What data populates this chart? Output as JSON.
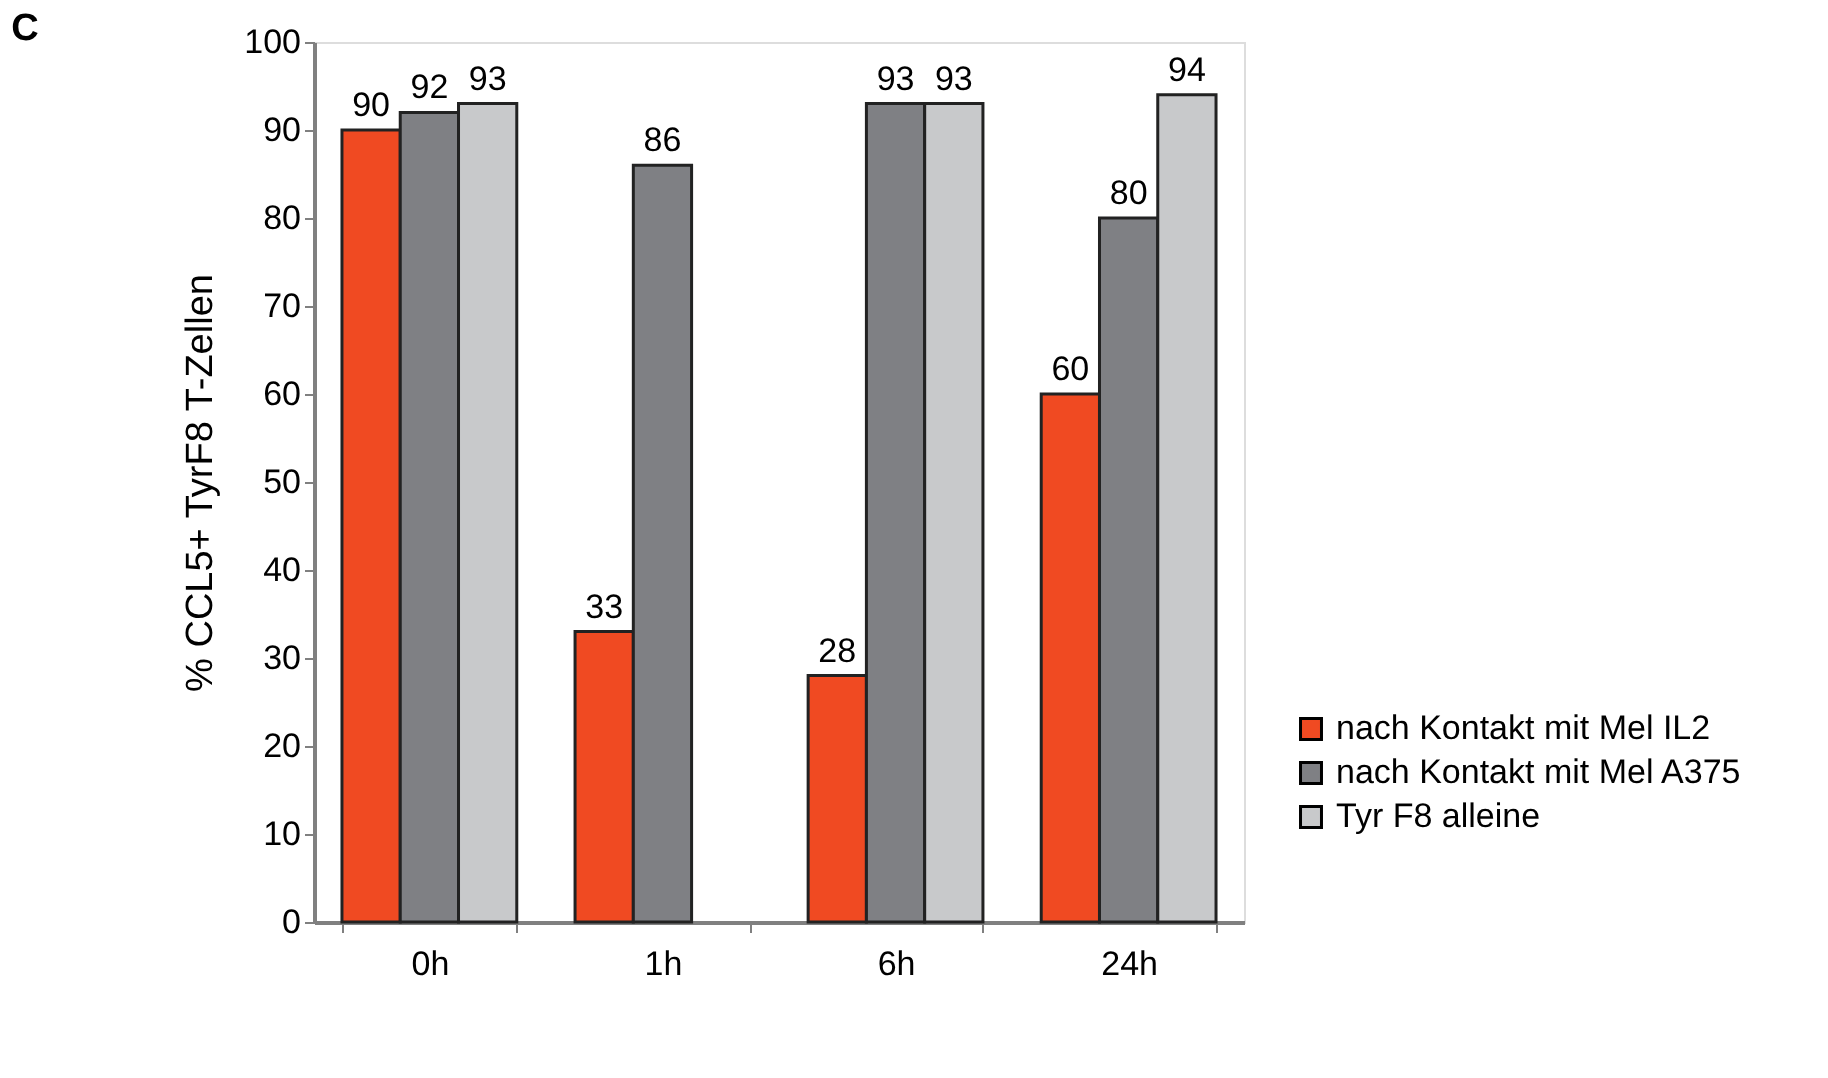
{
  "chart_data": {
    "type": "bar",
    "title": "C",
    "ylabel": "% CCL5+ TyrF8 T-Zellen",
    "categories": [
      "0h",
      "1h",
      "6h",
      "24h"
    ],
    "series": [
      {
        "name": "nach Kontakt mit Mel IL2",
        "color": "#f04a22",
        "values": [
          90,
          33,
          28,
          60
        ]
      },
      {
        "name": "nach Kontakt mit Mel A375",
        "color": "#7f8084",
        "values": [
          92,
          86,
          93,
          80
        ]
      },
      {
        "name": "Tyr F8 alleine",
        "color": "#c8c9cb",
        "values": [
          93,
          null,
          93,
          94
        ]
      }
    ],
    "ylim": [
      0,
      100
    ],
    "yticks": [
      0,
      10,
      20,
      30,
      40,
      50,
      60,
      70,
      80,
      90,
      100
    ],
    "data_labels": true,
    "grid": false,
    "legend": "bottom right"
  }
}
